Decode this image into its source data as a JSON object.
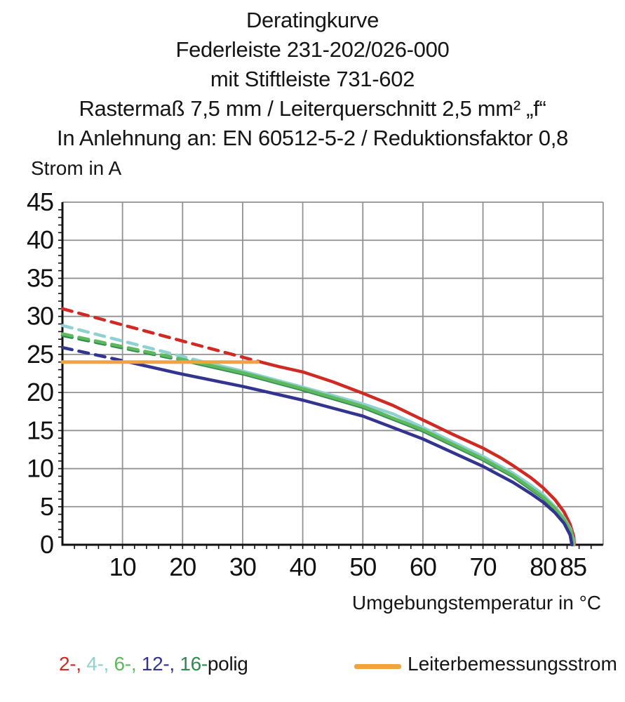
{
  "title_lines": [
    "Deratingkurve",
    "Federleiste 231-202/026-000",
    "mit Stiftleiste 731-602",
    "Rastermaß 7,5 mm / Leiterquerschnitt 2,5 mm² „f“",
    "In Anlehnung an: EN 60512-5-2 / Reduktionsfaktor 0,8"
  ],
  "y_axis_title": "Strom in A",
  "x_axis_title": "Umgebungstemperatur in °C",
  "legend": {
    "pole_items": [
      {
        "label": "2-,",
        "color": "#cf2a24"
      },
      {
        "label": "4-,",
        "color": "#8ed1cf"
      },
      {
        "label": "6-,",
        "color": "#5eb85e"
      },
      {
        "label": "12-,",
        "color": "#333390"
      },
      {
        "label": "16-",
        "color": "#2e8b50"
      }
    ],
    "pole_suffix": "polig",
    "suffix_color": "#151515",
    "reference_label": "Leiterbemessungsstrom",
    "reference_color": "#f0a43e"
  },
  "chart_data": {
    "type": "line",
    "title": "Deratingkurve Federleiste 231-202/026-000 mit Stiftleiste 731-602",
    "xlabel": "Umgebungstemperatur in °C",
    "ylabel": "Strom in A",
    "xlim": [
      0,
      90
    ],
    "ylim": [
      0,
      45
    ],
    "x_ticks": [
      10,
      20,
      30,
      40,
      50,
      60,
      70,
      80,
      85
    ],
    "y_ticks": [
      0,
      5,
      10,
      15,
      20,
      25,
      30,
      35,
      40,
      45
    ],
    "x_minor_step": 2,
    "y_minor_step": 1,
    "grid": true,
    "grid_color": "#919191",
    "axis_color": "#111111",
    "legend_position": "bottom",
    "series": [
      {
        "name": "2-polig",
        "color": "#cf2a24",
        "dash_style": "dashed-then-solid",
        "dashed": [
          [
            0,
            31
          ],
          [
            32.5,
            24.1
          ]
        ],
        "solid": [
          [
            32.5,
            24.1
          ],
          [
            36,
            23.4
          ],
          [
            40,
            22.7
          ],
          [
            45,
            21.4
          ],
          [
            50,
            19.9
          ],
          [
            55,
            18.3
          ],
          [
            60,
            16.4
          ],
          [
            65,
            14.5
          ],
          [
            70,
            12.7
          ],
          [
            73,
            11.4
          ],
          [
            75,
            10.4
          ],
          [
            78,
            8.8
          ],
          [
            80,
            7.5
          ],
          [
            82,
            5.9
          ],
          [
            83.5,
            4.3
          ],
          [
            84.5,
            2.7
          ],
          [
            85.1,
            1.1
          ],
          [
            85.2,
            0
          ]
        ]
      },
      {
        "name": "4-polig",
        "color": "#8ed1cf",
        "dash_style": "dashed-then-solid",
        "dashed": [
          [
            0,
            28.8
          ],
          [
            23,
            24.1
          ]
        ],
        "solid": [
          [
            23,
            24.1
          ],
          [
            30,
            22.8
          ],
          [
            40,
            20.7
          ],
          [
            50,
            18.5
          ],
          [
            55,
            17.2
          ],
          [
            60,
            15.4
          ],
          [
            65,
            13.5
          ],
          [
            70,
            11.6
          ],
          [
            75,
            9.4
          ],
          [
            78,
            7.8
          ],
          [
            80,
            6.6
          ],
          [
            82,
            5.0
          ],
          [
            83.5,
            3.5
          ],
          [
            84.6,
            2.0
          ],
          [
            85.0,
            0.8
          ],
          [
            85.1,
            0
          ]
        ]
      },
      {
        "name": "16-polig",
        "color": "#2e8b50",
        "dash_style": "dashed-then-solid",
        "dashed": [
          [
            0,
            27.5
          ],
          [
            21,
            24.05
          ]
        ],
        "solid": [
          [
            21,
            24.05
          ],
          [
            30,
            22.45
          ],
          [
            40,
            20.35
          ],
          [
            50,
            18.05
          ],
          [
            60,
            14.95
          ],
          [
            65,
            13.05
          ],
          [
            70,
            11.15
          ],
          [
            75,
            8.95
          ],
          [
            80,
            6.15
          ],
          [
            82,
            4.65
          ],
          [
            83.5,
            3.15
          ],
          [
            84.7,
            1.5
          ],
          [
            84.9,
            0
          ]
        ]
      },
      {
        "name": "6-polig",
        "color": "#5eb85e",
        "dash_style": "dashed-then-solid",
        "dashed": [
          [
            0,
            27.7
          ],
          [
            21.5,
            24.1
          ]
        ],
        "solid": [
          [
            21.5,
            24.1
          ],
          [
            30,
            22.6
          ],
          [
            40,
            20.5
          ],
          [
            50,
            18.2
          ],
          [
            60,
            15.1
          ],
          [
            65,
            13.2
          ],
          [
            70,
            11.3
          ],
          [
            75,
            9.1
          ],
          [
            80,
            6.3
          ],
          [
            82,
            4.8
          ],
          [
            83.5,
            3.3
          ],
          [
            84.7,
            1.7
          ],
          [
            85.0,
            0
          ]
        ]
      },
      {
        "name": "12-polig",
        "color": "#333390",
        "dash_style": "dashed-then-solid",
        "dashed": [
          [
            0,
            25.9
          ],
          [
            11,
            24.0
          ]
        ],
        "solid": [
          [
            11,
            24.0
          ],
          [
            20,
            22.4
          ],
          [
            30,
            20.8
          ],
          [
            40,
            19.0
          ],
          [
            50,
            16.9
          ],
          [
            60,
            13.9
          ],
          [
            65,
            12.1
          ],
          [
            70,
            10.3
          ],
          [
            75,
            8.2
          ],
          [
            78,
            6.7
          ],
          [
            80,
            5.6
          ],
          [
            82,
            4.2
          ],
          [
            83.5,
            2.8
          ],
          [
            84.5,
            1.3
          ],
          [
            84.8,
            0
          ]
        ]
      }
    ],
    "reference_line": {
      "name": "Leiterbemessungsstrom",
      "color": "#f0a43e",
      "points": [
        [
          0,
          24
        ],
        [
          32.5,
          24
        ]
      ]
    }
  }
}
